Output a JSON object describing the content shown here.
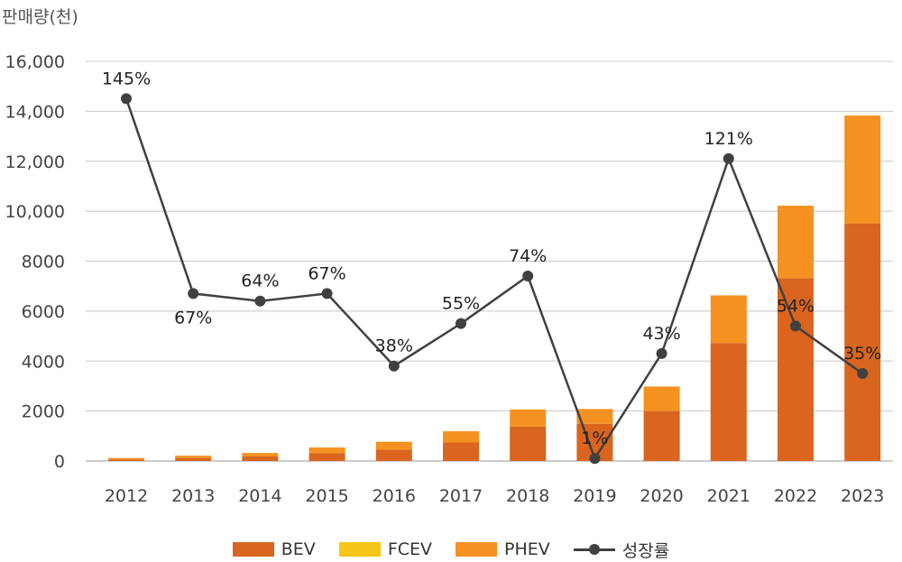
{
  "chart_data": {
    "type": "bar",
    "stacked": true,
    "ylabel": "판매량(천)",
    "ylim": [
      0,
      16000
    ],
    "yticks": [
      "0",
      "2000",
      "4000",
      "6000",
      "8000",
      "10,000",
      "12,000",
      "14,000",
      "16,000"
    ],
    "ytick_values": [
      0,
      2000,
      4000,
      6000,
      8000,
      10000,
      12000,
      14000,
      16000
    ],
    "grid": true,
    "legend_position": "bottom",
    "categories": [
      "2012",
      "2013",
      "2014",
      "2015",
      "2016",
      "2017",
      "2018",
      "2019",
      "2020",
      "2021",
      "2022",
      "2023"
    ],
    "series": [
      {
        "name": "BEV",
        "color": "#D9651F",
        "values": [
          60,
          110,
          180,
          320,
          450,
          740,
          1380,
          1490,
          2000,
          4720,
          7320,
          9500
        ]
      },
      {
        "name": "FCEV",
        "color": "#F5C518",
        "values": [
          0,
          0,
          0,
          0,
          0,
          0,
          0,
          0,
          0,
          0,
          0,
          0
        ]
      },
      {
        "name": "PHEV",
        "color": "#F59120",
        "values": [
          60,
          100,
          140,
          220,
          320,
          450,
          680,
          590,
          980,
          1910,
          2900,
          4330
        ]
      }
    ],
    "growth": {
      "name": "성장률",
      "color": "#404040",
      "values": [
        145,
        67,
        64,
        67,
        38,
        55,
        74,
        1,
        43,
        121,
        54,
        35
      ],
      "labels": [
        "145%",
        "67%",
        "64%",
        "67%",
        "38%",
        "55%",
        "74%",
        "1%",
        "43%",
        "121%",
        "54%",
        "35%"
      ]
    }
  },
  "legend": {
    "bev": "BEV",
    "fcev": "FCEV",
    "phev": "PHEV",
    "growth": "성장률"
  }
}
